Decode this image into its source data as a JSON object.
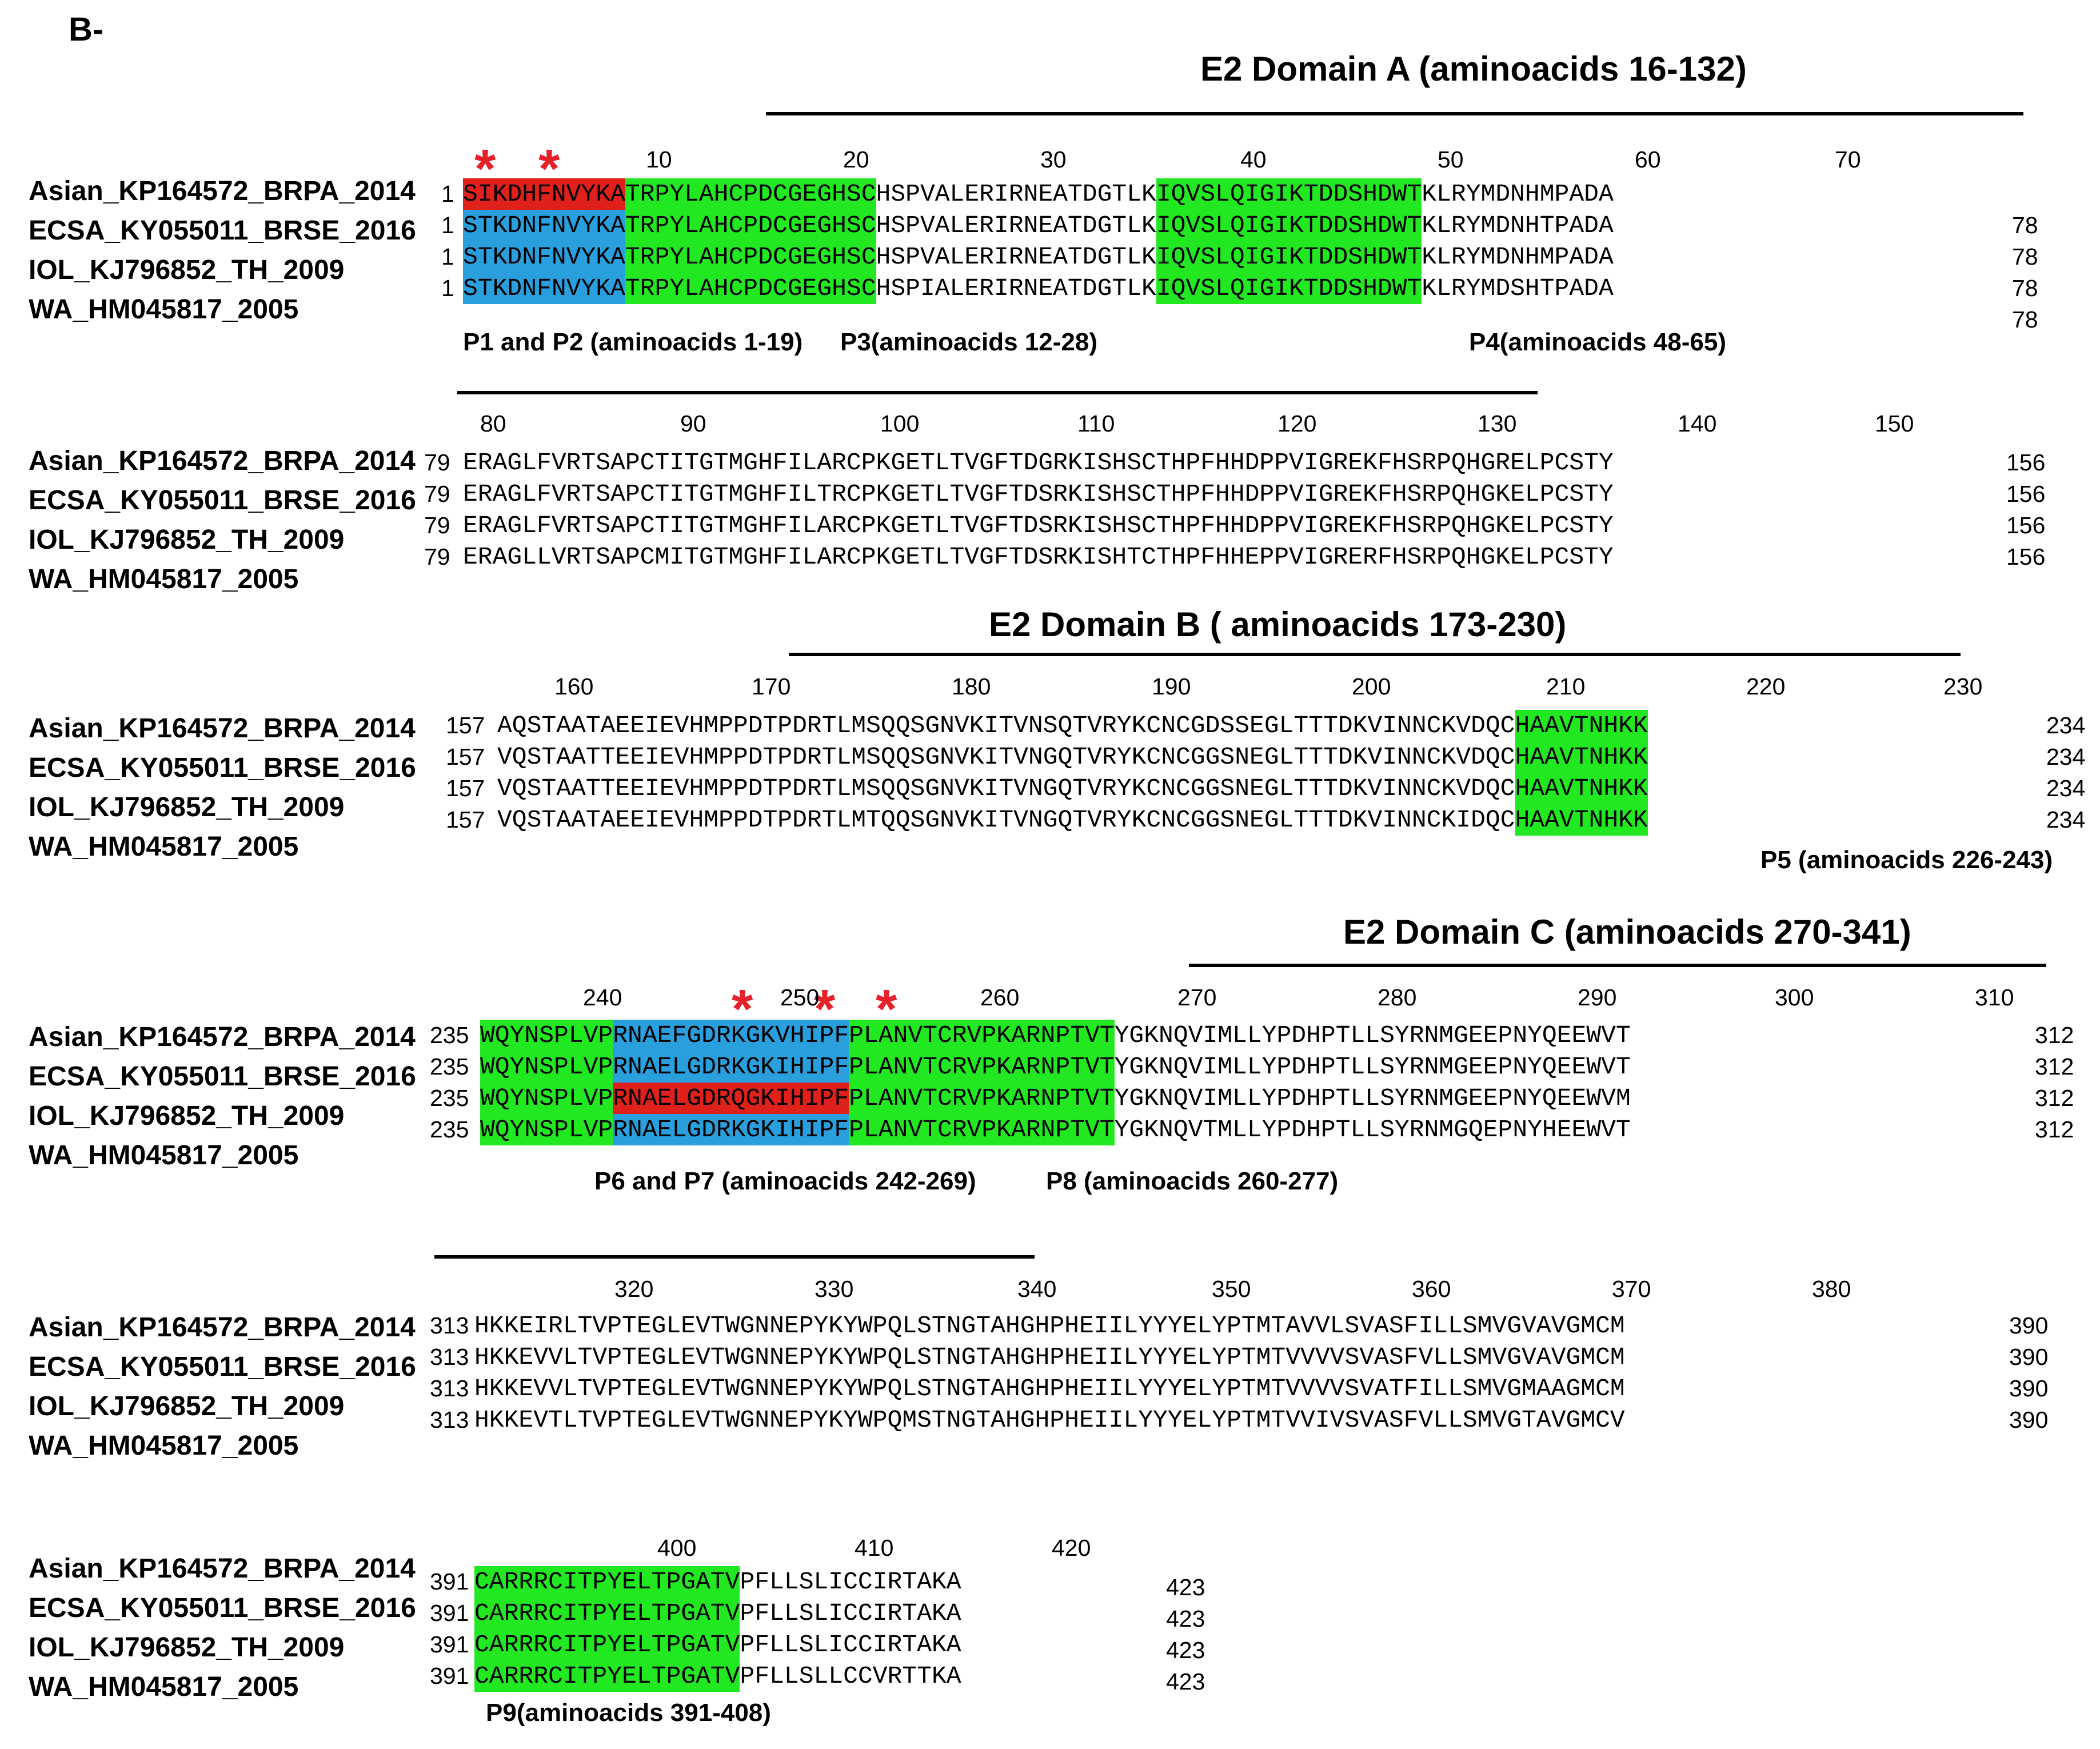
{
  "panel_label": "B-",
  "strain_names": [
    "Asian_KP164572_BRPA_2014",
    "ECSA_KY055011_BRSE_2016",
    "IOL_KJ796852_TH_2009",
    "WA_HM045817_2005"
  ],
  "domains": {
    "a": "E2  Domain A (aminoacids 16-132)",
    "b": "E2 Domain B ( aminoacids 173-230)",
    "c": "E2 Domain C (aminoacids 270-341)"
  },
  "blocks": [
    {
      "start": "1",
      "end": "78",
      "ticks": [
        "10",
        "20",
        "30",
        "40",
        "50",
        "60",
        "70"
      ],
      "rows": [
        [
          "SIKDHFNVYKA",
          "TRPYLAHCPDCGEGHSC",
          "HSPVALERIRNEATDGTLK",
          "IQVSLQIGIKTDDSHDWT",
          "KLRYMDNHMPADA"
        ],
        [
          "STKDNFNVYKA",
          "TRPYLAHCPDCGEGHSC",
          "HSPVALERIRNEATDGTLK",
          "IQVSLQIGIKTDDSHDWT",
          "KLRYMDNHTPADA"
        ],
        [
          "STKDNFNVYKA",
          "TRPYLAHCPDCGEGHSC",
          "HSPVALERIRNEATDGTLK",
          "IQVSLQIGIKTDDSHDWT",
          "KLRYMDNHMPADA"
        ],
        [
          "STKDNFNVYKA",
          "TRPYLAHCPDCGEGHSC",
          "HSPIALERIRNEATDGTLK",
          "IQVSLQIGIKTDDSHDWT",
          "KLRYMDSHTPADA"
        ]
      ],
      "captions": [
        "P1 and P2 (aminoacids 1-19)",
        "P3(aminoacids 12-28)",
        "P4(aminoacids 48-65)"
      ]
    },
    {
      "start": "79",
      "end": "156",
      "ticks": [
        "80",
        "90",
        "100",
        "110",
        "120",
        "130",
        "140",
        "150"
      ],
      "rows": [
        [
          "ERAGLFVRTSAPCTITGTMGHFILARCPKGETLTVGFTDGRKISHSCTHPFHHDPPVIGREKFHSRPQHGRELPCSTY"
        ],
        [
          "ERAGLFVRTSAPCTITGTMGHFILTRCPKGETLTVGFTDSRKISHSCTHPFHHDPPVIGREKFHSRPQHGKELPCSTY"
        ],
        [
          "ERAGLFVRTSAPCTITGTMGHFILARCPKGETLTVGFTDSRKISHSCTHPFHHDPPVIGREKFHSRPQHGKELPCSTY"
        ],
        [
          "ERAGLLVRTSAPCMITGTMGHFILARCPKGETLTVGFTDSRKISHTCTHPFHHEPPVIGRERFHSRPQHGKELPCSTY"
        ]
      ],
      "captions": []
    },
    {
      "start": "157",
      "end": "234",
      "ticks": [
        "160",
        "170",
        "180",
        "190",
        "200",
        "210",
        "220",
        "230"
      ],
      "rows": [
        [
          "AQSTAATAEEIEVHMPPDTPDRTLMSQQSGNVKITVNSQTVRYKCNCGDSSEGLTTTDKVINNCKVDQC",
          "HAAVTNHKK"
        ],
        [
          "VQSTAATTEEIEVHMPPDTPDRTLMSQQSGNVKITVNGQTVRYKCNCGGSNEGLTTTDKVINNCKVDQC",
          "HAAVTNHKK"
        ],
        [
          "VQSTAATTEEIEVHMPPDTPDRTLMSQQSGNVKITVNGQTVRYKCNCGGSNEGLTTTDKVINNCKVDQC",
          "HAAVTNHKK"
        ],
        [
          "VQSTAATAEEIEVHMPPDTPDRTLMTQQSGNVKITVNGQTVRYKCNCGGSNEGLTTTDKVINNCKIDQC",
          "HAAVTNHKK"
        ]
      ],
      "captions": [
        "P5 (aminoacids 226-243)"
      ]
    },
    {
      "start": "235",
      "end": "312",
      "ticks": [
        "240",
        "250",
        "260",
        "270",
        "280",
        "290",
        "300",
        "310"
      ],
      "rows": [
        [
          "WQYNSPLVP",
          "RNAEFGDRKGKVHIPF",
          "PLANVTCRVPKARNPTVT",
          "YGKNQVIMLLYPDHPTLLSYRNMGEEPNYQEEWVT"
        ],
        [
          "WQYNSPLVP",
          "RNAELGDRKGKIHIPF",
          "PLANVTCRVPKARNPTVT",
          "YGKNQVIMLLYPDHPTLLSYRNMGEEPNYQEEWVT"
        ],
        [
          "WQYNSPLVP",
          "RNAELGDRQGKIHIPF",
          "PLANVTCRVPKARNPTVT",
          "YGKNQVIMLLYPDHPTLLSYRNMGEEPNYQEEWVM"
        ],
        [
          "WQYNSPLVP",
          "RNAELGDRKGKIHIPF",
          "PLANVTCRVPKARNPTVT",
          "YGKNQVTMLLYPDHPTLLSYRNMGQEPNYHEEWVT"
        ]
      ],
      "captions": [
        "P6 and P7 (aminoacids 242-269)",
        "P8 (aminoacids 260-277)"
      ]
    },
    {
      "start": "313",
      "end": "390",
      "ticks": [
        "320",
        "330",
        "340",
        "350",
        "360",
        "370",
        "380"
      ],
      "rows": [
        [
          "HKKEIRLTVPTEGLEVTWGNNEPYKYWPQLSTNGTAHGHPHEIILYYYELYPTMTAVVLSVASFILLSMVGVAVGMCM"
        ],
        [
          "HKKEVVLTVPTEGLEVTWGNNEPYKYWPQLSTNGTAHGHPHEIILYYYELYPTMTVVVVSVASFVLLSMVGVAVGMCM"
        ],
        [
          "HKKEVVLTVPTEGLEVTWGNNEPYKYWPQLSTNGTAHGHPHEIILYYYELYPTMTVVVVSVATFILLSMVGMAAGMCM"
        ],
        [
          "HKKEVTLTVPTEGLEVTWGNNEPYKYWPQMSTNGTAHGHPHEIILYYYELYPTMTVVIVSVASFVLLSMVGTAVGMCV"
        ]
      ],
      "captions": []
    },
    {
      "start": "391",
      "end": "423",
      "ticks": [
        "400",
        "410",
        "420"
      ],
      "rows": [
        [
          "CARRRCITPYELTPGATV",
          "PFLLSLICCIRTAKA"
        ],
        [
          "CARRRCITPYELTPGATV",
          "PFLLSLICCIRTAKA"
        ],
        [
          "CARRRCITPYELTPGATV",
          "PFLLSLICCIRTAKA"
        ],
        [
          "CARRRCITPYELTPGATV",
          "PFLLSLLCCVRTTKA"
        ]
      ],
      "captions": [
        "P9(aminoacids 391-408)"
      ]
    }
  ],
  "colors": {
    "green": "#22e822",
    "blue": "#2a9fde",
    "red": "#e0201b",
    "star": "#e8202a"
  }
}
